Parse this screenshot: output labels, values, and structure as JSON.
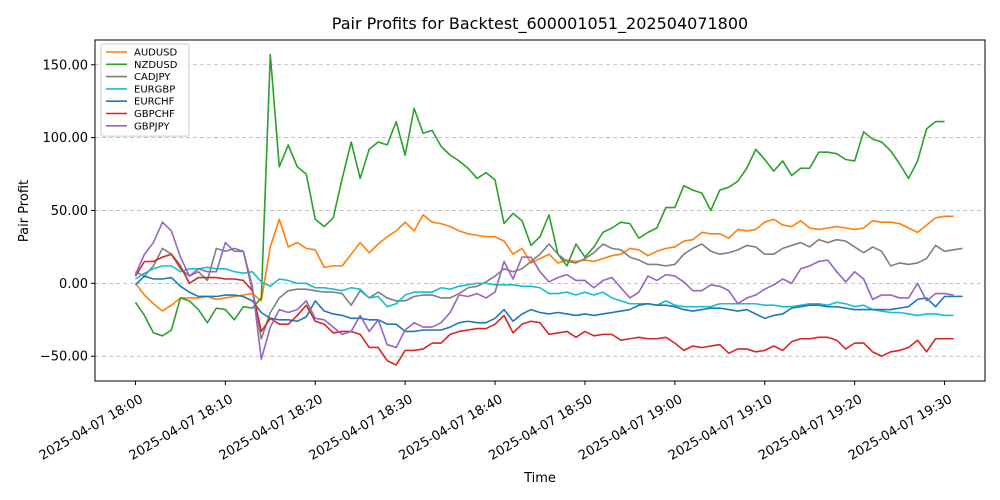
{
  "chart_data": {
    "type": "line",
    "title": "Pair Profits for Backtest_600001051_202504071800",
    "xlabel": "Time",
    "ylabel": "Pair Profit",
    "xlim": [
      -4.5,
      94.5
    ],
    "ylim": [
      -67,
      167
    ],
    "grid": "horizontal dashed",
    "legend_position": "top-left",
    "x_ticks": [
      {
        "x": 0,
        "label": "2025-04-07 18:00"
      },
      {
        "x": 10,
        "label": "2025-04-07 18:10"
      },
      {
        "x": 20,
        "label": "2025-04-07 18:20"
      },
      {
        "x": 30,
        "label": "2025-04-07 18:30"
      },
      {
        "x": 40,
        "label": "2025-04-07 18:40"
      },
      {
        "x": 50,
        "label": "2025-04-07 18:50"
      },
      {
        "x": 60,
        "label": "2025-04-07 19:00"
      },
      {
        "x": 70,
        "label": "2025-04-07 19:10"
      },
      {
        "x": 80,
        "label": "2025-04-07 19:20"
      },
      {
        "x": 90,
        "label": "2025-04-07 19:30"
      }
    ],
    "y_ticks": [
      -50,
      0,
      50,
      100,
      150
    ],
    "y_tick_labels": [
      "−50.00",
      "0.00",
      "50.00",
      "100.00",
      "150.00"
    ],
    "series": [
      {
        "name": "AUDUSD",
        "color": "#ff7f0e",
        "values": [
          0,
          -8,
          -14,
          -19,
          -15,
          -10,
          -10,
          -10,
          -9,
          -11,
          -10,
          -9,
          -8,
          -7,
          -12,
          25,
          44,
          25,
          28,
          24,
          23,
          11,
          12,
          12,
          20,
          28,
          21,
          27,
          32,
          36,
          42,
          36,
          47,
          42,
          41,
          39,
          36,
          34,
          33,
          32,
          32,
          29,
          20,
          24,
          14,
          17,
          20,
          14,
          16,
          15,
          16,
          15,
          17,
          19,
          20,
          24,
          23,
          19,
          22,
          24,
          25,
          29,
          30,
          35,
          34,
          34,
          31,
          37,
          36,
          37,
          42,
          44,
          40,
          39,
          43,
          38,
          37,
          38,
          39,
          38,
          37,
          38,
          43,
          42,
          42,
          41,
          38,
          35,
          40,
          45,
          46,
          46
        ]
      },
      {
        "name": "NZDUSD",
        "color": "#2ca02c",
        "values": [
          -13,
          -22,
          -34,
          -36,
          -32,
          -10,
          -12,
          -18,
          -27,
          -17,
          -18,
          -25,
          -16,
          -17,
          -10,
          157,
          80,
          95,
          80,
          75,
          44,
          39,
          45,
          72,
          97,
          72,
          92,
          97,
          95,
          111,
          88,
          120,
          103,
          105,
          94,
          88,
          84,
          79,
          72,
          76,
          71,
          41,
          48,
          43,
          26,
          32,
          47,
          20,
          12,
          27,
          18,
          25,
          35,
          38,
          42,
          41,
          31,
          35,
          38,
          52,
          52,
          67,
          64,
          62,
          50,
          64,
          66,
          70,
          79,
          92,
          85,
          77,
          84,
          74,
          79,
          79,
          90,
          90,
          89,
          85,
          84,
          104,
          99,
          97,
          91,
          82,
          72,
          84,
          106,
          111,
          111
        ]
      },
      {
        "name": "CADJPY",
        "color": "#7f7f7f",
        "values": [
          8,
          5,
          12,
          24,
          20,
          10,
          5,
          8,
          2,
          24,
          22,
          24,
          22,
          -5,
          -38,
          -20,
          -10,
          -5,
          -4,
          -4,
          -5,
          -6,
          -6,
          -7,
          -15,
          -5,
          -10,
          -6,
          -10,
          -12,
          -12,
          -9,
          -8,
          -8,
          -10,
          -10,
          -7,
          -3,
          -2,
          1,
          5,
          10,
          8,
          10,
          15,
          20,
          27,
          20,
          15,
          14,
          17,
          21,
          27,
          24,
          23,
          18,
          16,
          13,
          13,
          12,
          13,
          20,
          24,
          27,
          22,
          20,
          21,
          23,
          26,
          25,
          20,
          20,
          24,
          26,
          28,
          25,
          30,
          28,
          30,
          29,
          25,
          21,
          25,
          22,
          12,
          14,
          13,
          14,
          17,
          26,
          22,
          23,
          24
        ]
      },
      {
        "name": "EURGBP",
        "color": "#17becf",
        "values": [
          3,
          7,
          10,
          12,
          12,
          8,
          10,
          10,
          11,
          10,
          10,
          8,
          7,
          8,
          1,
          -2,
          3,
          2,
          0,
          0,
          -3,
          -3,
          -4,
          -5,
          -3,
          -4,
          -10,
          -9,
          -16,
          -14,
          -8,
          -6,
          -6,
          -6,
          -3,
          -4,
          -2,
          -1,
          0,
          0,
          -1,
          -1,
          -1,
          -2,
          -2,
          -3,
          -7,
          -7,
          -6,
          -8,
          -6,
          -8,
          -6,
          -10,
          -12,
          -14,
          -14,
          -14,
          -15,
          -12,
          -15,
          -16,
          -16,
          -16,
          -16,
          -14,
          -14,
          -14,
          -14,
          -14,
          -15,
          -15,
          -16,
          -16,
          -15,
          -14,
          -14,
          -15,
          -13,
          -14,
          -16,
          -15,
          -18,
          -19,
          -20,
          -20,
          -21,
          -22,
          -21,
          -21,
          -22,
          -22
        ]
      },
      {
        "name": "EURCHF",
        "color": "#1f77b4",
        "values": [
          -1,
          5,
          3,
          3,
          4,
          -2,
          -6,
          -9,
          -9,
          -9,
          -8,
          -8,
          -9,
          -12,
          -20,
          -24,
          -25,
          -25,
          -26,
          -23,
          -12,
          -19,
          -21,
          -22,
          -24,
          -24,
          -25,
          -25,
          -28,
          -28,
          -33,
          -33,
          -32,
          -32,
          -32,
          -30,
          -27,
          -26,
          -27,
          -27,
          -24,
          -18,
          -26,
          -21,
          -18,
          -20,
          -21,
          -20,
          -21,
          -22,
          -21,
          -22,
          -21,
          -20,
          -19,
          -18,
          -15,
          -14,
          -15,
          -15,
          -16,
          -18,
          -19,
          -18,
          -17,
          -17,
          -18,
          -19,
          -18,
          -21,
          -24,
          -22,
          -21,
          -17,
          -16,
          -15,
          -15,
          -16,
          -16,
          -17,
          -18,
          -18,
          -18,
          -18,
          -18,
          -17,
          -16,
          -11,
          -10,
          -16,
          -9,
          -9,
          -9
        ]
      },
      {
        "name": "GBPCHF",
        "color": "#d62728",
        "values": [
          5,
          15,
          15,
          18,
          20,
          12,
          0,
          4,
          4,
          4,
          3,
          3,
          2,
          -5,
          -33,
          -24,
          -28,
          -28,
          -22,
          -15,
          -26,
          -28,
          -34,
          -33,
          -33,
          -35,
          -44,
          -44,
          -53,
          -56,
          -46,
          -46,
          -45,
          -41,
          -41,
          -35,
          -33,
          -32,
          -31,
          -31,
          -28,
          -22,
          -34,
          -28,
          -26,
          -27,
          -35,
          -34,
          -33,
          -37,
          -33,
          -36,
          -35,
          -35,
          -39,
          -38,
          -37,
          -38,
          -38,
          -37,
          -41,
          -46,
          -43,
          -44,
          -43,
          -42,
          -48,
          -45,
          -45,
          -47,
          -46,
          -43,
          -46,
          -40,
          -38,
          -38,
          -37,
          -37,
          -39,
          -45,
          -41,
          -41,
          -47,
          -50,
          -47,
          -46,
          -44,
          -39,
          -47,
          -38,
          -38,
          -38
        ]
      },
      {
        "name": "GBPJPY",
        "color": "#9467bd",
        "values": [
          6,
          20,
          28,
          42,
          36,
          18,
          5,
          10,
          8,
          8,
          28,
          22,
          22,
          -2,
          -52,
          -30,
          -18,
          -20,
          -18,
          -12,
          -24,
          -25,
          -30,
          -35,
          -33,
          -22,
          -33,
          -25,
          -42,
          -44,
          -32,
          -27,
          -30,
          -30,
          -27,
          -20,
          -8,
          -9,
          -7,
          -10,
          -6,
          15,
          3,
          18,
          18,
          8,
          1,
          4,
          6,
          2,
          2,
          -3,
          2,
          4,
          -3,
          -10,
          -6,
          5,
          2,
          6,
          5,
          1,
          -5,
          -5,
          -1,
          -2,
          -5,
          -14,
          -10,
          -8,
          -4,
          -1,
          3,
          0,
          10,
          12,
          15,
          16,
          8,
          1,
          8,
          3,
          -11,
          -8,
          -8,
          -10,
          -10,
          0,
          -12,
          -7,
          -7,
          -8
        ]
      }
    ]
  }
}
